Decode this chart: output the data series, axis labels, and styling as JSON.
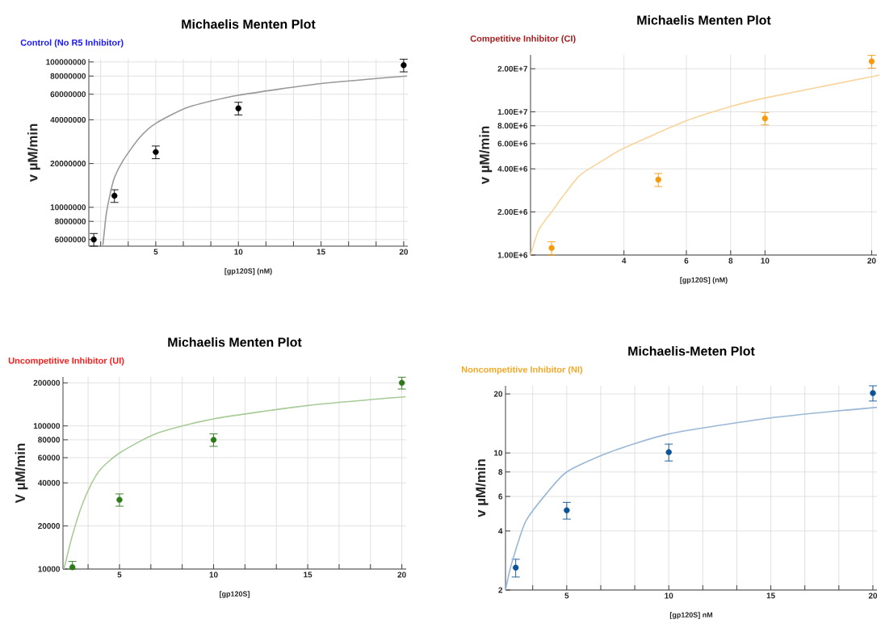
{
  "chart_data": [
    {
      "type": "scatter",
      "title": "Michaelis Menten Plot",
      "subtitle": "Control (No R5 Inhibitor)",
      "xlabel": "[gp120S] (nM)",
      "ylabel": "v µM/min",
      "log": "y",
      "grid": true,
      "xlim": [
        0.95,
        20.25
      ],
      "ylim": [
        5400000,
        105000000
      ],
      "xticks": [
        {
          "value": 1.667,
          "label": null
        },
        {
          "value": 3.333,
          "label": null
        },
        5,
        {
          "value": 6.667,
          "label": null
        },
        {
          "value": 8.333,
          "label": null
        },
        10,
        {
          "value": 11.667,
          "label": null
        },
        {
          "value": 13.333,
          "label": null
        },
        15,
        {
          "value": 16.667,
          "label": null
        },
        {
          "value": 18.333,
          "label": null
        },
        20
      ],
      "yticks": [
        6000000,
        8000000,
        10000000,
        20000000,
        40000000,
        60000000,
        80000000,
        100000000
      ],
      "series": [
        {
          "color": "#000000",
          "marker": "circle",
          "x": [
            1.25,
            2.5,
            5,
            10,
            20
          ],
          "values": [
            6000000,
            12000000,
            24000000,
            48000000,
            95000000
          ],
          "errors": [
            600000,
            1200000,
            2400000,
            4800000,
            9500000
          ]
        },
        {
          "type": "line",
          "color": "#999999",
          "x": [
            1.8,
            1.9,
            2,
            2.25,
            2.5,
            3,
            4,
            5,
            7,
            10,
            15,
            20.2
          ],
          "values": [
            5500000,
            7000000,
            8900000,
            12500000,
            16000000,
            20800000,
            30000000,
            37800000,
            49000000,
            59000000,
            71000000,
            80000000
          ]
        }
      ]
    },
    {
      "type": "scatter",
      "title": "Michaelis Menten Plot",
      "subtitle": "Competitive Inhibitor (CI)",
      "xlabel": "[gp120S] (nM)",
      "ylabel": "v µM/min",
      "log": "xy",
      "grid": true,
      "xlim": [
        2.18,
        20.7
      ],
      "ylim": [
        1000000,
        25000000
      ],
      "xticks": [
        4,
        6,
        8,
        10,
        20
      ],
      "yticks": [
        {
          "value": 1000000,
          "label": "1.00E+6"
        },
        {
          "value": 2000000,
          "label": "2.00E+6"
        },
        {
          "value": 4000000,
          "label": "4.00E+6"
        },
        {
          "value": 6000000,
          "label": "6.00E+6"
        },
        {
          "value": 8000000,
          "label": "8.00E+6"
        },
        {
          "value": 10000000,
          "label": "1.00E+7"
        },
        {
          "value": 20000000,
          "label": "2.00E+7"
        }
      ],
      "series": [
        {
          "color": "#f59a0c",
          "marker": "circle",
          "x": [
            2.5,
            5,
            10,
            20
          ],
          "values": [
            1120000,
            3360000,
            9000000,
            22500000
          ],
          "errors": [
            120000,
            350000,
            900000,
            2300000
          ]
        },
        {
          "type": "line",
          "color": "#f8d49a",
          "x": [
            2.18,
            2.3,
            2.5,
            2.7,
            3,
            3.5,
            4,
            6,
            8,
            10,
            20,
            20.7
          ],
          "values": [
            1000000,
            1500000,
            2000000,
            2600000,
            3600000,
            4600000,
            5580000,
            8670000,
            10900000,
            12500000,
            17600000,
            18000000
          ]
        }
      ]
    },
    {
      "type": "scatter",
      "title": "Michaelis Menten Plot",
      "subtitle": "Uncompetitive Inhibitor (UI)",
      "xlabel": "[gp120S]",
      "ylabel": "V µM/min",
      "log": "y",
      "grid": true,
      "xlim": [
        2,
        20.23
      ],
      "ylim": [
        10000,
        220000
      ],
      "xticks": [
        {
          "value": 3.333,
          "label": null
        },
        5,
        {
          "value": 6.667,
          "label": null
        },
        {
          "value": 8.333,
          "label": null
        },
        10,
        {
          "value": 11.667,
          "label": null
        },
        {
          "value": 13.333,
          "label": null
        },
        15,
        {
          "value": 16.667,
          "label": null
        },
        {
          "value": 18.333,
          "label": null
        },
        20
      ],
      "yticks": [
        10000,
        20000,
        40000,
        60000,
        80000,
        100000,
        200000
      ],
      "series": [
        {
          "color": "#2d7a1a",
          "marker": "circle",
          "x": [
            2.5,
            5,
            10,
            20
          ],
          "values": [
            10300,
            30500,
            80000,
            200000
          ],
          "errors": [
            [
              10000,
              11300
            ],
            3000,
            8000,
            19000
          ]
        },
        {
          "type": "line",
          "color": "#a8cc98",
          "x": [
            2.05,
            2.2,
            2.5,
            3,
            3.5,
            4,
            5,
            7,
            10,
            15,
            20.2
          ],
          "values": [
            10000,
            12000,
            17200,
            27700,
            39300,
            49900,
            64700,
            88900,
            112000,
            139000,
            160000
          ]
        }
      ]
    },
    {
      "type": "scatter",
      "title": "Michaelis-Meten Plot",
      "subtitle": "Noncompetitive Inhibitor (NI)",
      "xlabel": "[gp120S] nM",
      "ylabel": "v µM/min",
      "log": "y",
      "grid": true,
      "xlim": [
        2,
        20.2
      ],
      "ylim": [
        2,
        22
      ],
      "xticks": [
        {
          "value": 3.333,
          "label": null
        },
        5,
        {
          "value": 6.667,
          "label": null
        },
        {
          "value": 8.333,
          "label": null
        },
        10,
        {
          "value": 11.667,
          "label": null
        },
        {
          "value": 13.333,
          "label": null
        },
        15,
        {
          "value": 16.667,
          "label": null
        },
        {
          "value": 18.333,
          "label": null
        },
        20
      ],
      "yticks": [
        2,
        4,
        6,
        8,
        10,
        20
      ],
      "series": [
        {
          "color": "#0b5394",
          "marker": "circle",
          "x": [
            2.5,
            5,
            10,
            20
          ],
          "values": [
            2.6,
            5.1,
            10.1,
            20.2
          ],
          "errors": [
            0.27,
            0.5,
            1.0,
            1.8
          ]
        },
        {
          "type": "line",
          "color": "#9ab8d6",
          "x": [
            2,
            2.2,
            2.5,
            3,
            4,
            5,
            7,
            10,
            15,
            20.2
          ],
          "values": [
            2,
            2.5,
            3.2,
            4.5,
            6.2,
            8.0,
            10,
            12.5,
            15.1,
            17.1
          ]
        }
      ]
    }
  ]
}
